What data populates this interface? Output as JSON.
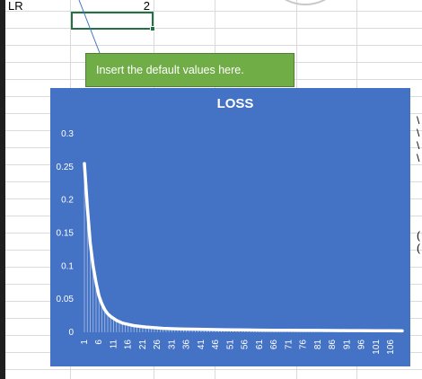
{
  "sheet": {
    "lr_label": "LR",
    "lr_value": "2"
  },
  "callout": {
    "text": "Insert the default values here."
  },
  "chart_data": {
    "type": "line",
    "title": "LOSS",
    "xlabel": "",
    "ylabel": "",
    "ylim": [
      0,
      0.3
    ],
    "y_ticks": [
      "0",
      "0.05",
      "0.1",
      "0.15",
      "0.2",
      "0.25",
      "0.3"
    ],
    "x_tick_labels": [
      "1",
      "6",
      "11",
      "16",
      "21",
      "26",
      "31",
      "36",
      "41",
      "46",
      "51",
      "56",
      "61",
      "66",
      "71",
      "76",
      "81",
      "86",
      "91",
      "96",
      "101",
      "106"
    ],
    "grid": false,
    "series_color": "#ffffff",
    "series": [
      {
        "name": "",
        "x": [
          1,
          2,
          3,
          4,
          5,
          6,
          7,
          8,
          9,
          10,
          11,
          12,
          13,
          14,
          15,
          16,
          18,
          20,
          22,
          25,
          28,
          31,
          35,
          40,
          46,
          51,
          56,
          61,
          66,
          71,
          76,
          81,
          86,
          91,
          96,
          101,
          106,
          110
        ],
        "values": [
          0.255,
          0.19,
          0.135,
          0.1,
          0.075,
          0.055,
          0.043,
          0.034,
          0.028,
          0.024,
          0.021,
          0.018,
          0.016,
          0.014,
          0.013,
          0.012,
          0.01,
          0.009,
          0.008,
          0.007,
          0.006,
          0.0055,
          0.005,
          0.0045,
          0.004,
          0.0038,
          0.0035,
          0.0033,
          0.0031,
          0.003,
          0.0029,
          0.0028,
          0.0027,
          0.0026,
          0.0025,
          0.0024,
          0.0023,
          0.0022
        ]
      }
    ]
  }
}
